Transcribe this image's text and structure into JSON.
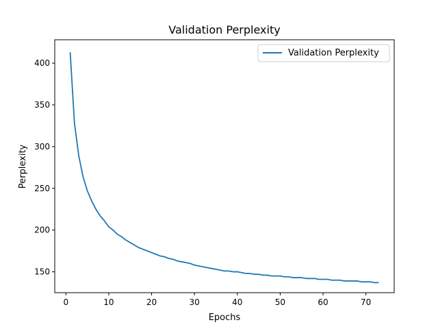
{
  "chart_data": {
    "type": "line",
    "title": "Validation Perplexity",
    "xlabel": "Epochs",
    "ylabel": "Perplexity",
    "xlim": [
      -2.6,
      76.6
    ],
    "ylim": [
      125,
      428
    ],
    "xticks": [
      0,
      10,
      20,
      30,
      40,
      50,
      60,
      70
    ],
    "yticks": [
      150,
      200,
      250,
      300,
      350,
      400
    ],
    "grid": false,
    "legend_position": "top-right",
    "series": [
      {
        "name": "Validation Perplexity",
        "color": "#1f77b4",
        "x": [
          1,
          2,
          3,
          4,
          5,
          6,
          7,
          8,
          9,
          10,
          11,
          12,
          13,
          14,
          15,
          16,
          17,
          18,
          19,
          20,
          21,
          22,
          23,
          24,
          25,
          26,
          27,
          28,
          29,
          30,
          31,
          32,
          33,
          34,
          35,
          36,
          37,
          38,
          39,
          40,
          41,
          42,
          43,
          44,
          45,
          46,
          47,
          48,
          49,
          50,
          51,
          52,
          53,
          54,
          55,
          56,
          57,
          58,
          59,
          60,
          61,
          62,
          63,
          64,
          65,
          66,
          67,
          68,
          69,
          70,
          71,
          72,
          73
        ],
        "values": [
          413,
          328,
          289,
          264,
          247,
          235,
          225,
          217,
          211,
          204,
          200,
          195,
          192,
          188,
          185,
          182,
          179,
          177,
          175,
          173,
          171,
          169,
          168,
          166,
          165,
          163,
          162,
          161,
          160,
          158,
          157,
          156,
          155,
          154,
          153,
          152,
          151,
          151,
          150,
          150,
          149,
          148,
          148,
          147,
          147,
          146,
          146,
          145,
          145,
          145,
          144,
          144,
          143,
          143,
          143,
          142,
          142,
          142,
          141,
          141,
          141,
          140,
          140,
          140,
          139,
          139,
          139,
          139,
          138,
          138,
          138,
          137,
          137
        ]
      }
    ]
  }
}
